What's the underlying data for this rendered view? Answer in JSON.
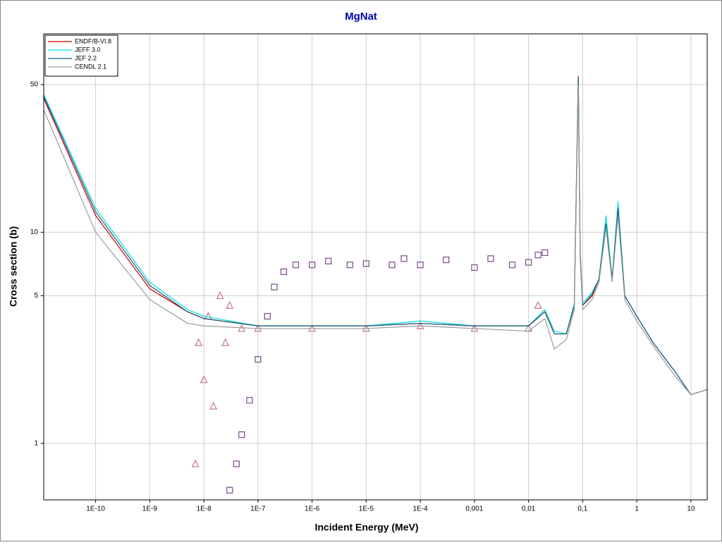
{
  "chart_data": {
    "type": "line",
    "title": "MgNat",
    "x_label": "Incident Energy (MeV)",
    "y_label": "Cross section (b)",
    "xscale": "log",
    "yscale": "log",
    "grid": true,
    "legend": "upper left",
    "xlim": [
      1.1e-11,
      20
    ],
    "ylim": [
      0.54,
      87
    ],
    "xticks": [
      {
        "value": 1e-10,
        "label": "1E-10"
      },
      {
        "value": 1e-09,
        "label": "1E-9"
      },
      {
        "value": 1e-08,
        "label": "1E-8"
      },
      {
        "value": 1e-07,
        "label": "1E-7"
      },
      {
        "value": 1e-06,
        "label": "1E-6"
      },
      {
        "value": 1e-05,
        "label": "1E-5"
      },
      {
        "value": 0.0001,
        "label": "1E-4"
      },
      {
        "value": 0.001,
        "label": "0,001"
      },
      {
        "value": 0.01,
        "label": "0,01"
      },
      {
        "value": 0.1,
        "label": "0,1"
      },
      1,
      10
    ],
    "yticks": [
      1,
      5,
      10,
      50
    ],
    "x": [
      1.1e-11,
      1e-10,
      1e-09,
      5e-09,
      1e-08,
      1e-07,
      1e-06,
      1e-05,
      0.0001,
      0.001,
      0.01,
      0.02,
      0.03,
      0.05,
      0.07,
      0.083,
      0.09,
      0.1,
      0.15,
      0.2,
      0.27,
      0.35,
      0.45,
      0.6,
      1,
      2,
      5,
      10,
      20
    ],
    "series": [
      {
        "name": "ENDF/B-VI.8",
        "color": "#cc0000",
        "values": [
          43,
          12,
          5.4,
          4.2,
          3.9,
          3.6,
          3.6,
          3.6,
          3.7,
          3.6,
          3.6,
          4.2,
          3.3,
          3.3,
          4.5,
          55,
          8,
          4.5,
          5,
          6,
          11,
          6,
          13,
          5,
          4,
          3,
          2.2,
          1.7,
          1.8
        ]
      },
      {
        "name": "JEFF 3.0",
        "color": "#00dddd",
        "values": [
          45,
          13,
          5.8,
          4.3,
          4.0,
          3.6,
          3.6,
          3.6,
          3.8,
          3.6,
          3.6,
          4.3,
          3.4,
          3.3,
          4.6,
          52,
          8,
          4.6,
          5.2,
          6,
          12,
          6,
          14,
          5,
          4,
          3,
          2.2,
          1.7,
          1.8
        ]
      },
      {
        "name": "JEF 2.2",
        "color": "#1a5a7a",
        "values": [
          44,
          12.5,
          5.6,
          4.2,
          3.9,
          3.6,
          3.6,
          3.6,
          3.7,
          3.6,
          3.6,
          4.2,
          3.3,
          3.3,
          4.5,
          54,
          8,
          4.5,
          5.1,
          6,
          11,
          6,
          13,
          5,
          4,
          3,
          2.2,
          1.7,
          1.8
        ]
      },
      {
        "name": "CENDL 2.1",
        "color": "#999999",
        "values": [
          38,
          10,
          4.8,
          3.7,
          3.6,
          3.5,
          3.5,
          3.5,
          3.6,
          3.5,
          3.4,
          3.9,
          2.8,
          3.1,
          4.3,
          50,
          7.5,
          4.3,
          4.8,
          5.8,
          10.5,
          5.8,
          12,
          4.8,
          3.8,
          2.9,
          2.1,
          1.7,
          1.8
        ]
      }
    ],
    "points": [
      {
        "color": "#7a4a8a",
        "marker": "square",
        "x": [
          3e-08,
          4e-08,
          5e-08,
          7e-08,
          1e-07,
          1.5e-07,
          2e-07,
          3e-07,
          5e-07,
          1e-06,
          2e-06,
          5e-06,
          1e-05,
          3e-05,
          5e-05,
          0.0001,
          0.0003,
          0.001,
          0.002,
          0.005,
          0.01,
          0.015,
          0.02
        ],
        "values": [
          0.6,
          0.8,
          1.1,
          1.6,
          2.5,
          4,
          5.5,
          6.5,
          7,
          7,
          7.3,
          7,
          7.1,
          7,
          7.5,
          7,
          7.4,
          6.8,
          7.5,
          7,
          7.2,
          7.8,
          8
        ]
      },
      {
        "color": "#c07890",
        "marker": "triangle",
        "x": [
          7e-09,
          8e-09,
          1e-08,
          1.2e-08,
          1.5e-08,
          2e-08,
          2.5e-08,
          3e-08,
          5e-08,
          1e-07,
          1e-06,
          1e-05,
          0.0001,
          0.001,
          0.01,
          0.015
        ],
        "values": [
          0.8,
          3,
          2,
          4,
          1.5,
          5,
          3,
          4.5,
          3.5,
          3.5,
          3.5,
          3.5,
          3.6,
          3.5,
          3.5,
          4.5
        ]
      }
    ]
  }
}
